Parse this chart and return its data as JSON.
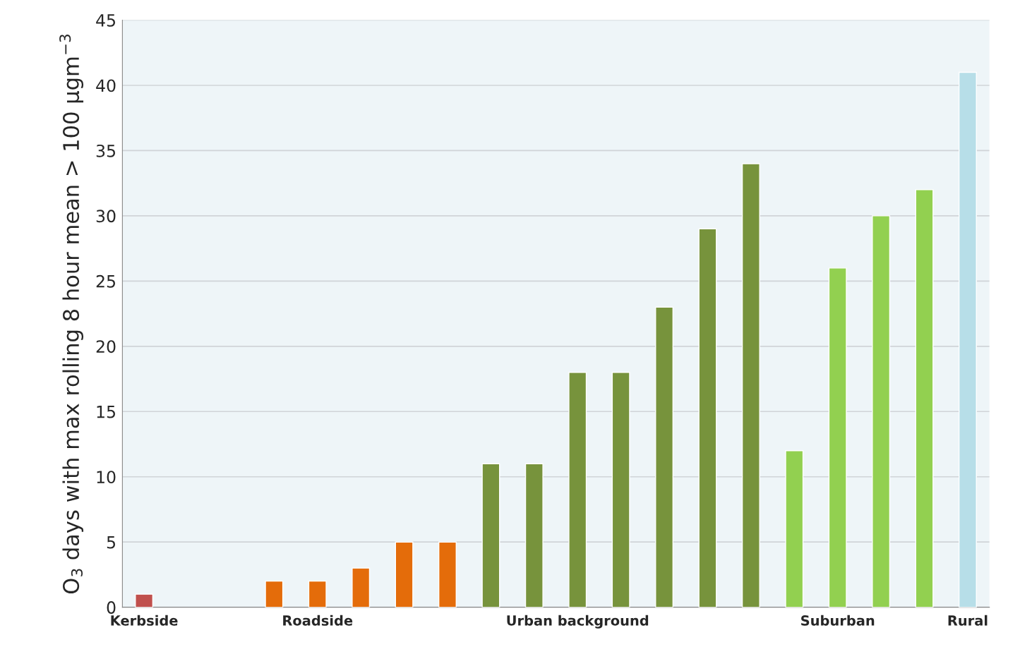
{
  "chart_data": {
    "type": "bar",
    "ylabel": "O$_{3}$ days with max rolling 8 hour mean > 100 µgm$^{−3}$",
    "categories": [
      "Kerbside",
      null,
      null,
      null,
      "Roadside",
      null,
      null,
      null,
      null,
      null,
      "Urban background",
      null,
      null,
      null,
      null,
      null,
      "Suburban",
      null,
      null,
      "Rural"
    ],
    "values": [
      1,
      null,
      null,
      2,
      2,
      3,
      5,
      5,
      11,
      11,
      18,
      18,
      23,
      29,
      34,
      12,
      26,
      30,
      32,
      41
    ],
    "colors": [
      "#c0504d",
      "#e46c0a",
      "#e46c0a",
      "#e46c0a",
      "#e46c0a",
      "#e46c0a",
      "#e46c0a",
      "#e46c0a",
      "#77933c",
      "#77933c",
      "#77933c",
      "#77933c",
      "#77933c",
      "#77933c",
      "#77933c",
      "#92d050",
      "#92d050",
      "#92d050",
      "#92d050",
      "#b7dee8"
    ],
    "ylim": [
      0,
      45
    ],
    "yticks": [
      0,
      5,
      10,
      15,
      20,
      25,
      30,
      35,
      40,
      45
    ],
    "grid": "y",
    "legend": false
  }
}
